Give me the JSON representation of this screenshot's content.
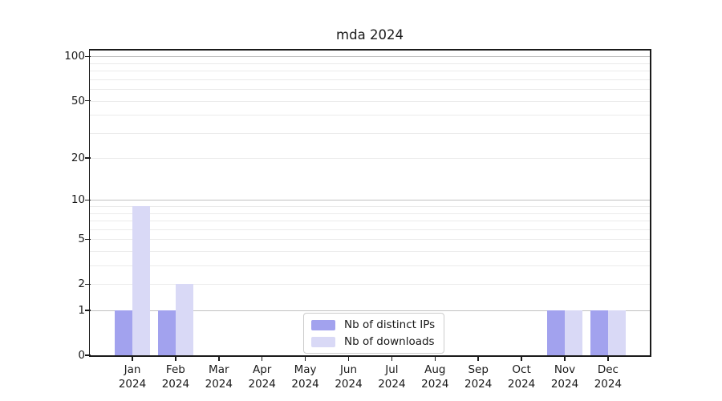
{
  "chart_data": {
    "type": "bar",
    "title": "mda 2024",
    "categories": [
      "Jan",
      "Feb",
      "Mar",
      "Apr",
      "May",
      "Jun",
      "Jul",
      "Aug",
      "Sep",
      "Oct",
      "Nov",
      "Dec"
    ],
    "x_year": "2024",
    "series": [
      {
        "name": "Nb of distinct IPs",
        "color": "#a2a2ee",
        "values": [
          1,
          1,
          0,
          0,
          0,
          0,
          0,
          0,
          0,
          0,
          1,
          1
        ]
      },
      {
        "name": "Nb of downloads",
        "color": "#d9d9f6",
        "values": [
          9,
          2,
          0,
          0,
          0,
          0,
          0,
          0,
          0,
          0,
          1,
          1
        ]
      }
    ],
    "xlabel": "",
    "ylabel": "",
    "yscale": "log1p",
    "ylim": [
      0,
      111
    ],
    "yticks": [
      0,
      1,
      2,
      5,
      10,
      20,
      50,
      100
    ],
    "major_grid_values": [
      1,
      10,
      100
    ],
    "minor_grid_values": [
      2,
      3,
      4,
      5,
      6,
      7,
      8,
      9,
      20,
      30,
      40,
      50,
      60,
      70,
      80,
      90
    ],
    "grid": true,
    "legend_position": "lower center"
  }
}
